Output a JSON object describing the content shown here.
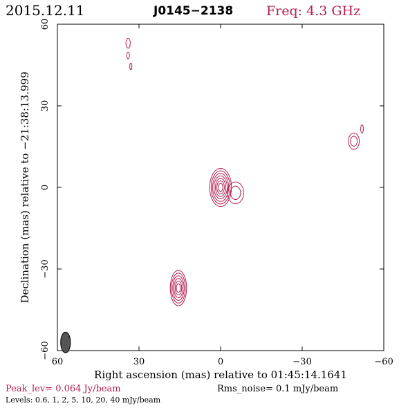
{
  "header": {
    "date": "2015.12.11",
    "source": "J0145−2138",
    "freq": "Freq: 4.3 GHz"
  },
  "footer": {
    "peak": "Peak_lev=  0.064 Jy/beam",
    "rms": "Rms_noise=  0.1 mJy/beam",
    "levels": "Levels: 0.6,   1,   2,   5,  10,  20,  40 mJy/beam"
  },
  "colors": {
    "contour": "#b0204f",
    "frame": "#000000",
    "beam_fill": "#555555"
  },
  "chart_data": {
    "type": "contour",
    "xlabel": "Right ascension (mas) relative to 01:45:14.1641",
    "ylabel": "Declination (mas) relative to −21:38:13.999",
    "xlim": [
      60,
      -60
    ],
    "ylim": [
      -60,
      60
    ],
    "x_ticks": [
      {
        "value": 60,
        "label": "60"
      },
      {
        "value": 30,
        "label": "30"
      },
      {
        "value": 0,
        "label": "0"
      },
      {
        "value": -30,
        "label": "−30"
      },
      {
        "value": -60,
        "label": "−60"
      }
    ],
    "y_ticks": [
      {
        "value": -60,
        "label": "−60"
      },
      {
        "value": -30,
        "label": "−30"
      },
      {
        "value": 0,
        "label": "0"
      },
      {
        "value": 30,
        "label": "30"
      },
      {
        "value": 60,
        "label": "60"
      }
    ],
    "levels_mJy_per_beam": [
      0.6,
      1,
      2,
      5,
      10,
      20,
      40
    ],
    "components": [
      {
        "name": "core",
        "x": 0,
        "y": 0,
        "rx": 4.0,
        "ry": 7.0,
        "rings": 7
      },
      {
        "name": "core-extension",
        "x": -5.5,
        "y": -2,
        "rx": 3.0,
        "ry": 4.0,
        "rings": 2
      },
      {
        "name": "south-east-knot",
        "x": 15.5,
        "y": -37,
        "rx": 3.0,
        "ry": 6.5,
        "rings": 6
      },
      {
        "name": "west-blob",
        "x": -49,
        "y": 17,
        "rx": 2.0,
        "ry": 3.0,
        "rings": 2
      },
      {
        "name": "west-blob-small",
        "x": -52,
        "y": 21.5,
        "rx": 0.5,
        "ry": 1.5,
        "rings": 1
      },
      {
        "name": "north-east-1",
        "x": 34,
        "y": 53,
        "rx": 0.8,
        "ry": 1.8,
        "rings": 1
      },
      {
        "name": "north-east-2",
        "x": 34,
        "y": 48.5,
        "rx": 0.5,
        "ry": 1.2,
        "rings": 1
      },
      {
        "name": "north-east-3",
        "x": 33,
        "y": 44.5,
        "rx": 0.4,
        "ry": 1.2,
        "rings": 1
      }
    ],
    "beam": {
      "x": 57,
      "y": -57,
      "major": 3.8,
      "minor": 1.8
    }
  }
}
